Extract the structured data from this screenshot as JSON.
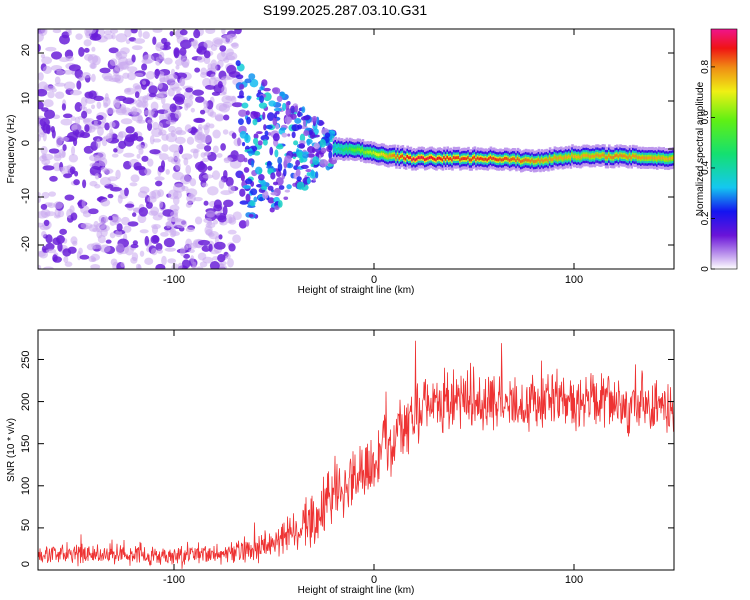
{
  "title": "S199.2025.287.03.10.G31",
  "colors": {
    "snr_line": "#ee3333",
    "frame": "#000000",
    "spectral_ridge": "#ff2a2a",
    "noise_purple": "#8a4bd8"
  },
  "chart_data": [
    {
      "type": "heatmap",
      "name": "spectrogram",
      "xlabel": "Height of straight line (km)",
      "ylabel": "Frequency (Hz)",
      "xlim": [
        -168,
        150
      ],
      "ylim": [
        -25,
        25
      ],
      "xticks": [
        -100,
        0,
        100
      ],
      "yticks": [
        -20,
        -10,
        0,
        10,
        20
      ],
      "colorbar": {
        "label": "Normalized spectral amplitude",
        "range": [
          0,
          0.95
        ],
        "ticks": [
          0.0,
          0.2,
          0.4,
          0.6,
          0.8
        ],
        "colormap": "rainbow (purple-blue-cyan-green-yellow-red-magenta)"
      },
      "regions": [
        {
          "x_from": -168,
          "x_to": -68,
          "kind": "diffuse noise",
          "amplitude": 0.05
        },
        {
          "x_from": -68,
          "x_to": -20,
          "kind": "scattered signal",
          "amplitude": 0.25
        },
        {
          "x_from": -20,
          "x_to": 150,
          "kind": "coherent tone",
          "amplitude": 0.9
        }
      ],
      "ridge": {
        "x": [
          -68,
          -60,
          -50,
          -40,
          -30,
          -20,
          -10,
          0,
          10,
          20,
          40,
          60,
          80,
          100,
          120,
          150
        ],
        "freq_hz": [
          -3,
          -2,
          2,
          4,
          1,
          0,
          0,
          -1,
          -1.5,
          -2,
          -2,
          -2,
          -2.5,
          -1.5,
          -1.5,
          -2
        ],
        "amplitude": [
          0.25,
          0.2,
          0.25,
          0.25,
          0.3,
          0.4,
          0.6,
          0.7,
          0.85,
          0.95,
          0.9,
          0.9,
          0.85,
          0.8,
          0.85,
          0.8
        ]
      }
    },
    {
      "type": "line",
      "name": "snr",
      "xlabel": "Height of straight line (km)",
      "ylabel": "SNR (10 * v/v)",
      "xlim": [
        -168,
        150
      ],
      "ylim": [
        0,
        285
      ],
      "xticks": [
        -100,
        0,
        100
      ],
      "yticks": [
        0,
        50,
        100,
        150,
        200,
        250
      ],
      "series": [
        {
          "name": "SNR",
          "x": [
            -168,
            -150,
            -130,
            -110,
            -90,
            -70,
            -60,
            -50,
            -40,
            -30,
            -20,
            -10,
            0,
            10,
            20,
            30,
            40,
            50,
            60,
            70,
            80,
            90,
            100,
            110,
            120,
            130,
            140,
            150
          ],
          "values": [
            20,
            18,
            19,
            18,
            19,
            20,
            24,
            32,
            45,
            65,
            90,
            115,
            130,
            155,
            185,
            195,
            200,
            205,
            200,
            195,
            200,
            205,
            195,
            200,
            195,
            190,
            195,
            195
          ],
          "noise_spread": [
            15,
            14,
            14,
            14,
            14,
            15,
            18,
            22,
            30,
            40,
            45,
            45,
            45,
            45,
            45,
            40,
            40,
            40,
            40,
            40,
            40,
            40,
            40,
            40,
            40,
            40,
            40,
            40
          ]
        }
      ]
    }
  ]
}
